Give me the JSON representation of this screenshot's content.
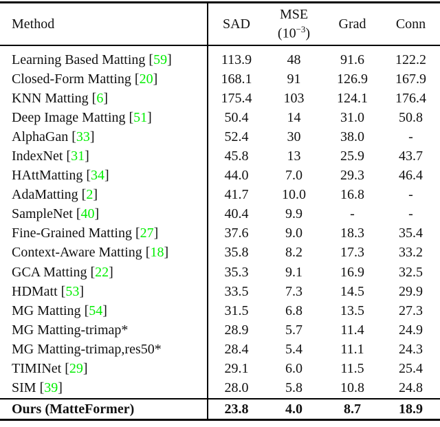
{
  "colors": {
    "background": "#ffffff",
    "text": "#111111",
    "rule": "#000000",
    "citation": "#00ee00"
  },
  "table": {
    "header": {
      "method": "Method",
      "sad": "SAD",
      "mse_line1": "MSE",
      "mse_open": "(10",
      "mse_sup": "−3",
      "mse_close": ")",
      "grad": "Grad",
      "conn": "Conn"
    },
    "rows": [
      {
        "method": "Learning Based Matting",
        "cite": "59",
        "sad": "113.9",
        "mse": "48",
        "grad": "91.6",
        "conn": "122.2"
      },
      {
        "method": "Closed-Form Matting",
        "cite": "20",
        "sad": "168.1",
        "mse": "91",
        "grad": "126.9",
        "conn": "167.9"
      },
      {
        "method": "KNN Matting",
        "cite": "6",
        "sad": "175.4",
        "mse": "103",
        "grad": "124.1",
        "conn": "176.4"
      },
      {
        "method": "Deep Image Matting",
        "cite": "51",
        "sad": "50.4",
        "mse": "14",
        "grad": "31.0",
        "conn": "50.8"
      },
      {
        "method": "AlphaGan",
        "cite": "33",
        "sad": "52.4",
        "mse": "30",
        "grad": "38.0",
        "conn": "-"
      },
      {
        "method": "IndexNet",
        "cite": "31",
        "sad": "45.8",
        "mse": "13",
        "grad": "25.9",
        "conn": "43.7"
      },
      {
        "method": "HAttMatting",
        "cite": "34",
        "sad": "44.0",
        "mse": "7.0",
        "grad": "29.3",
        "conn": "46.4"
      },
      {
        "method": "AdaMatting",
        "cite": "2",
        "sad": "41.7",
        "mse": "10.0",
        "grad": "16.8",
        "conn": "-"
      },
      {
        "method": "SampleNet",
        "cite": "40",
        "sad": "40.4",
        "mse": "9.9",
        "grad": "-",
        "conn": "-"
      },
      {
        "method": "Fine-Grained Matting",
        "cite": "27",
        "sad": "37.6",
        "mse": "9.0",
        "grad": "18.3",
        "conn": "35.4"
      },
      {
        "method": "Context-Aware Matting",
        "cite": "18",
        "sad": "35.8",
        "mse": "8.2",
        "grad": "17.3",
        "conn": "33.2"
      },
      {
        "method": "GCA Matting",
        "cite": "22",
        "sad": "35.3",
        "mse": "9.1",
        "grad": "16.9",
        "conn": "32.5"
      },
      {
        "method": "HDMatt",
        "cite": "53",
        "sad": "33.5",
        "mse": "7.3",
        "grad": "14.5",
        "conn": "29.9"
      },
      {
        "method": "MG Matting",
        "cite": "54",
        "sad": "31.5",
        "mse": "6.8",
        "grad": "13.5",
        "conn": "27.3"
      },
      {
        "method": "MG Matting-trimap*",
        "cite": "",
        "sad": "28.9",
        "mse": "5.7",
        "grad": "11.4",
        "conn": "24.9"
      },
      {
        "method": "MG Matting-trimap,res50*",
        "cite": "",
        "sad": "28.4",
        "mse": "5.4",
        "grad": "11.1",
        "conn": "24.3"
      },
      {
        "method": "TIMINet",
        "cite": "29",
        "sad": "29.1",
        "mse": "6.0",
        "grad": "11.5",
        "conn": "25.4"
      },
      {
        "method": "SIM",
        "cite": "39",
        "sad": "28.0",
        "mse": "5.8",
        "grad": "10.8",
        "conn": "24.8"
      }
    ],
    "ours": {
      "method": "Ours (MatteFormer)",
      "sad": "23.8",
      "mse": "4.0",
      "grad": "8.7",
      "conn": "18.9"
    }
  }
}
